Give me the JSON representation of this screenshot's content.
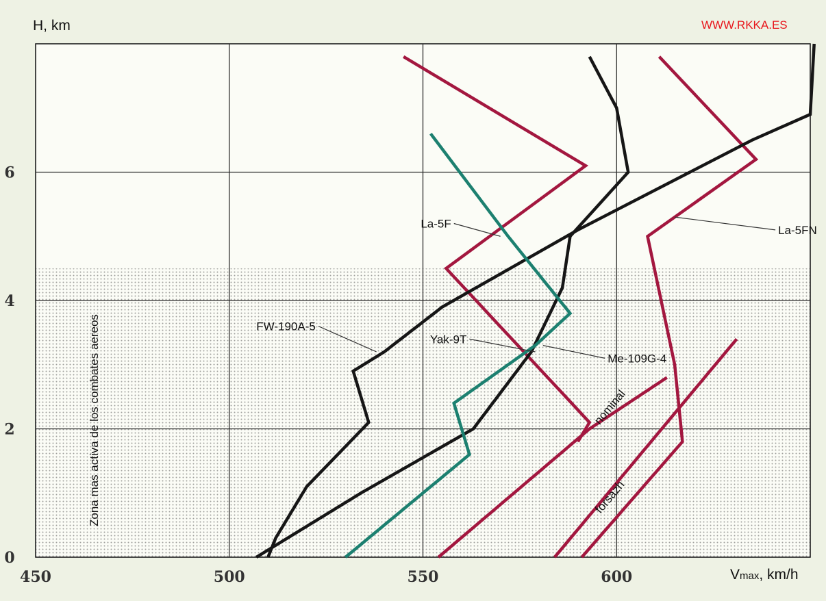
{
  "watermark": "WWW.RKKA.ES",
  "chart_data": {
    "type": "line",
    "title": "",
    "xlabel": "Vmax, km/h",
    "xlabel_main": "V",
    "xlabel_sub": "max",
    "xlabel_unit": ", km/h",
    "ylabel": "H, km",
    "xlim": [
      450,
      650
    ],
    "ylim": [
      0,
      8
    ],
    "x_ticks": [
      450,
      500,
      550,
      600
    ],
    "y_ticks": [
      0,
      2,
      4,
      6
    ],
    "grid": true,
    "shaded_zone": {
      "label": "Zona mas activa de los combates aereos",
      "y_range": [
        0,
        4.5
      ]
    },
    "series": [
      {
        "name": "La-5F",
        "color": "#a3173f",
        "points": [
          [
            545,
            7.8
          ],
          [
            592,
            6.1
          ],
          [
            556,
            4.5
          ],
          [
            593,
            2.1
          ],
          [
            590,
            1.8
          ]
        ]
      },
      {
        "name": "La-5FN",
        "color": "#a3173f",
        "points": [
          [
            611,
            7.8
          ],
          [
            636,
            6.2
          ],
          [
            608,
            5.0
          ],
          [
            615,
            3.0
          ],
          [
            617,
            1.8
          ],
          [
            591,
            0
          ]
        ]
      },
      {
        "name": "FW-190A-5",
        "color": "#161616",
        "points": [
          [
            651,
            8.0
          ],
          [
            650,
            6.9
          ],
          [
            635,
            6.5
          ],
          [
            590,
            5.1
          ],
          [
            555,
            3.9
          ],
          [
            540,
            3.2
          ],
          [
            532,
            2.9
          ],
          [
            536,
            2.1
          ],
          [
            520,
            1.1
          ],
          [
            512,
            0.3
          ],
          [
            510,
            0
          ]
        ]
      },
      {
        "name": "Me-109G-4",
        "color": "#161616",
        "points": [
          [
            593,
            7.8
          ],
          [
            600,
            7.0
          ],
          [
            603,
            6.0
          ],
          [
            588,
            5.0
          ],
          [
            586,
            4.2
          ],
          [
            578,
            3.2
          ],
          [
            563,
            2.0
          ],
          [
            534,
            1.0
          ],
          [
            507,
            0
          ]
        ]
      },
      {
        "name": "Yak-9T",
        "color": "#1c8070",
        "points": [
          [
            552,
            6.6
          ],
          [
            572,
            5.0
          ],
          [
            588,
            3.8
          ],
          [
            579,
            3.3
          ],
          [
            558,
            2.4
          ],
          [
            562,
            1.6
          ],
          [
            530,
            0
          ]
        ]
      },
      {
        "name": "nominal",
        "color": "#a3173f",
        "points": [
          [
            613,
            2.8
          ],
          [
            593,
            2.0
          ],
          [
            554,
            0
          ]
        ]
      },
      {
        "name": "forsazh",
        "color": "#a3173f",
        "points": [
          [
            631,
            3.4
          ],
          [
            584,
            0
          ]
        ]
      }
    ],
    "annotations": [
      {
        "text": "La-5F",
        "at": [
          558,
          5.2
        ],
        "point_to": [
          570,
          5.0
        ]
      },
      {
        "text": "La-5FN",
        "at": [
          641,
          5.1
        ],
        "point_to": [
          615,
          5.3
        ]
      },
      {
        "text": "FW-190A-5",
        "at": [
          523,
          3.6
        ],
        "point_to": [
          538,
          3.2
        ]
      },
      {
        "text": "Yak-9T",
        "at": [
          562,
          3.4
        ],
        "point_to": [
          579,
          3.2
        ]
      },
      {
        "text": "Me-109G-4",
        "at": [
          597,
          3.1
        ],
        "point_to": [
          581,
          3.3
        ]
      },
      {
        "text": "nominal",
        "at": [
          599,
          2.3
        ],
        "rotate": -50
      },
      {
        "text": "forsazh",
        "at": [
          599,
          0.9
        ],
        "rotate": -50
      }
    ]
  }
}
